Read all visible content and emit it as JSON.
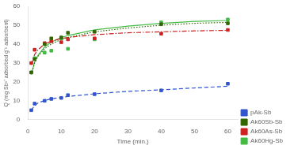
{
  "chart_data": {
    "type": "line",
    "xlabel": "Time (min.)",
    "ylabel": "Q (mg Sb³⁺ adsorbed g⁻¹ adsorbent)",
    "xlim": [
      0,
      63
    ],
    "ylim": [
      0,
      60
    ],
    "xticks": [
      0,
      10,
      20,
      30,
      40,
      50,
      60
    ],
    "yticks": [
      0,
      10,
      20,
      30,
      40,
      50,
      60
    ],
    "grid": false,
    "legend": "lower right",
    "series": [
      {
        "name": "pAk-Sb",
        "color": "#3355cc",
        "line_style": "dashed",
        "marker": "square",
        "x": [
          1,
          2,
          5,
          7,
          10,
          12,
          20,
          40,
          60
        ],
        "values": [
          5.0,
          8.5,
          10.0,
          11.0,
          11.5,
          13.0,
          13.5,
          15.5,
          19.0
        ],
        "fit_x": [
          1,
          2,
          3,
          5,
          7,
          10,
          12,
          20,
          30,
          40,
          50,
          60
        ],
        "fit_y": [
          5.0,
          7.5,
          8.8,
          10.2,
          11.0,
          11.8,
          12.3,
          13.7,
          15.0,
          15.8,
          16.8,
          17.7
        ]
      },
      {
        "name": "Ak60Sb-Sb",
        "color": "#336600",
        "line_style": "dotted",
        "marker": "square",
        "x": [
          1,
          2,
          5,
          7,
          10,
          12,
          20,
          40,
          60
        ],
        "values": [
          25.0,
          32.0,
          40.0,
          43.0,
          43.5,
          46.0,
          46.5,
          50.5,
          51.0
        ],
        "fit_x": [
          1,
          2,
          3,
          5,
          7,
          10,
          12,
          20,
          30,
          40,
          50,
          60
        ],
        "fit_y": [
          24.0,
          30.0,
          33.5,
          37.5,
          40.0,
          42.5,
          43.5,
          46.5,
          48.5,
          50.0,
          51.0,
          51.5
        ]
      },
      {
        "name": "Ak60As-Sb",
        "color": "#cc2222",
        "line_style": "dashdot",
        "marker": "square",
        "x": [
          1,
          2,
          5,
          7,
          10,
          12,
          20,
          40,
          60
        ],
        "values": [
          30.0,
          37.0,
          40.5,
          41.5,
          41.0,
          42.5,
          43.0,
          45.5,
          47.5
        ],
        "fit_x": [
          1,
          2,
          3,
          5,
          7,
          10,
          12,
          20,
          30,
          40,
          50,
          60
        ],
        "fit_y": [
          29.0,
          34.5,
          37.0,
          40.0,
          41.5,
          43.0,
          43.5,
          45.0,
          46.0,
          46.5,
          47.0,
          47.3
        ]
      },
      {
        "name": "Ak60Hg-Sb",
        "color": "#44bb44",
        "line_style": "solid",
        "marker": "square",
        "x": [
          1,
          2,
          5,
          7,
          10,
          12,
          20,
          40,
          60
        ],
        "values": [
          25.0,
          32.5,
          35.5,
          36.5,
          43.0,
          37.5,
          42.5,
          51.5,
          53.0
        ],
        "fit_x": [
          1,
          2,
          3,
          5,
          7,
          10,
          12,
          20,
          30,
          40,
          50,
          60
        ],
        "fit_y": [
          24.0,
          30.5,
          34.0,
          38.5,
          41.0,
          43.5,
          44.5,
          47.5,
          49.5,
          51.0,
          52.0,
          52.5
        ]
      }
    ]
  }
}
